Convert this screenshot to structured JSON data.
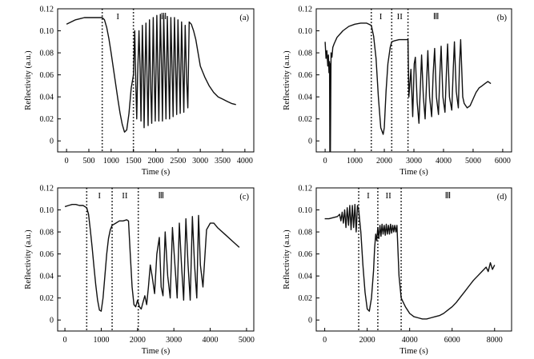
{
  "chart_data": [
    {
      "type": "line",
      "panel": "(a)",
      "ylabel": "Reflectivity (a.u.)",
      "xlabel": "Time (s)",
      "xlim": [
        -200,
        4200
      ],
      "ylim": [
        -0.01,
        0.12
      ],
      "xticks": [
        0,
        500,
        1000,
        1500,
        2000,
        2500,
        3000,
        3500,
        4000
      ],
      "yticks": [
        0,
        0.02,
        0.04,
        0.06,
        0.08,
        0.1,
        0.12
      ],
      "ytick_labels": [
        "0",
        "0.02",
        "0.04",
        "0.06",
        "0.08",
        "0.10",
        "0.12"
      ],
      "boundaries": [
        800,
        1500
      ],
      "regions": [
        {
          "label": "I",
          "x": 1150
        },
        {
          "label": "Ⅲ",
          "x": 2180
        }
      ],
      "series": [
        {
          "x": [
            0,
            100,
            200,
            300,
            400,
            500,
            600,
            700,
            800,
            850,
            900,
            950,
            1000,
            1050,
            1100,
            1150,
            1200,
            1250,
            1300,
            1350,
            1400,
            1450,
            1500,
            1530,
            1555,
            1575,
            1595,
            1625,
            1650,
            1670,
            1700,
            1725,
            1740,
            1780,
            1805,
            1830,
            1860,
            1880,
            1910,
            1945,
            1965,
            1990,
            2025,
            2050,
            2070,
            2105,
            2135,
            2150,
            2180,
            2210,
            2230,
            2260,
            2290,
            2310,
            2340,
            2370,
            2390,
            2420,
            2450,
            2470,
            2500,
            2530,
            2550,
            2580,
            2610,
            2630,
            2660,
            2690,
            2720,
            2750,
            2800,
            2850,
            2900,
            2950,
            3000,
            3100,
            3200,
            3300,
            3400,
            3500,
            3600,
            3700,
            3800
          ],
          "y": [
            0.106,
            0.108,
            0.11,
            0.111,
            0.112,
            0.112,
            0.112,
            0.112,
            0.112,
            0.11,
            0.103,
            0.093,
            0.08,
            0.066,
            0.052,
            0.038,
            0.025,
            0.015,
            0.008,
            0.01,
            0.025,
            0.048,
            0.06,
            0.1,
            0.05,
            0.02,
            0.06,
            0.1,
            0.065,
            0.018,
            0.105,
            0.06,
            0.012,
            0.107,
            0.06,
            0.014,
            0.11,
            0.06,
            0.016,
            0.112,
            0.06,
            0.018,
            0.114,
            0.06,
            0.018,
            0.115,
            0.06,
            0.018,
            0.114,
            0.06,
            0.02,
            0.113,
            0.06,
            0.02,
            0.112,
            0.06,
            0.022,
            0.112,
            0.06,
            0.024,
            0.11,
            0.06,
            0.025,
            0.108,
            0.06,
            0.026,
            0.105,
            0.06,
            0.03,
            0.108,
            0.106,
            0.1,
            0.092,
            0.08,
            0.068,
            0.058,
            0.05,
            0.044,
            0.04,
            0.038,
            0.036,
            0.034,
            0.033
          ]
        }
      ]
    },
    {
      "type": "line",
      "panel": "(b)",
      "ylabel": "Reflectivity (a.u.)",
      "xlabel": "Time (s)",
      "xlim": [
        -300,
        6300
      ],
      "ylim": [
        -0.01,
        0.12
      ],
      "xticks": [
        0,
        1000,
        2000,
        3000,
        4000,
        5000,
        6000
      ],
      "yticks": [
        0,
        0.02,
        0.04,
        0.06,
        0.08,
        0.1,
        0.12
      ],
      "ytick_labels": [
        "0",
        "0.02",
        "0.04",
        "0.06",
        "0.08",
        "0.10",
        "0.12"
      ],
      "boundaries": [
        1560,
        2250,
        2800
      ],
      "regions": [
        {
          "label": "I",
          "x": 1880
        },
        {
          "label": "II",
          "x": 2520
        },
        {
          "label": "Ⅲ",
          "x": 3750
        }
      ],
      "series": [
        {
          "x": [
            0,
            30,
            60,
            90,
            110,
            130,
            150,
            160,
            170,
            180,
            200,
            230,
            260,
            300,
            400,
            600,
            800,
            1000,
            1200,
            1400,
            1560,
            1640,
            1720,
            1800,
            1880,
            1960,
            2000,
            2060,
            2120,
            2200,
            2250,
            2350,
            2500,
            2700,
            2800,
            2830,
            2900,
            2960,
            3010,
            3050,
            3110,
            3170,
            3220,
            3260,
            3320,
            3380,
            3430,
            3470,
            3530,
            3600,
            3650,
            3700,
            3760,
            3830,
            3880,
            3920,
            3980,
            4050,
            4100,
            4140,
            4200,
            4280,
            4330,
            4370,
            4430,
            4500,
            4540,
            4580,
            4650,
            4700,
            4800,
            4900,
            5000,
            5100,
            5200,
            5300,
            5400,
            5500,
            5600
          ],
          "y": [
            0.09,
            0.075,
            0.082,
            0.068,
            0.078,
            0.062,
            0.072,
            -0.01,
            0.07,
            -0.01,
            0.08,
            0.076,
            0.085,
            0.088,
            0.094,
            0.1,
            0.104,
            0.106,
            0.107,
            0.107,
            0.105,
            0.095,
            0.075,
            0.04,
            0.012,
            0.006,
            0.012,
            0.045,
            0.07,
            0.085,
            0.09,
            0.091,
            0.092,
            0.092,
            0.092,
            0.04,
            0.065,
            0.022,
            0.07,
            0.076,
            0.035,
            0.016,
            0.05,
            0.078,
            0.04,
            0.02,
            0.055,
            0.082,
            0.04,
            0.022,
            0.06,
            0.084,
            0.04,
            0.024,
            0.062,
            0.086,
            0.04,
            0.026,
            0.064,
            0.088,
            0.04,
            0.028,
            0.066,
            0.09,
            0.045,
            0.03,
            0.068,
            0.092,
            0.04,
            0.034,
            0.03,
            0.032,
            0.038,
            0.044,
            0.048,
            0.05,
            0.052,
            0.054,
            0.052
          ]
        }
      ]
    },
    {
      "type": "line",
      "panel": "(c)",
      "ylabel": "Reflectivity (a.u.)",
      "xlabel": "Time (s)",
      "xlim": [
        -200,
        5200
      ],
      "ylim": [
        -0.01,
        0.12
      ],
      "xticks": [
        0,
        1000,
        2000,
        3000,
        4000,
        5000
      ],
      "yticks": [
        0,
        0.02,
        0.04,
        0.06,
        0.08,
        0.1,
        0.12
      ],
      "ytick_labels": [
        "0",
        "0.02",
        "0.04",
        "0.06",
        "0.08",
        "0.10",
        "0.12"
      ],
      "boundaries": [
        600,
        1300,
        2020
      ],
      "regions": [
        {
          "label": "I",
          "x": 950
        },
        {
          "label": "II",
          "x": 1650
        },
        {
          "label": "Ⅲ",
          "x": 2650
        }
      ],
      "series": [
        {
          "x": [
            0,
            100,
            200,
            300,
            400,
            500,
            600,
            650,
            700,
            750,
            800,
            850,
            900,
            950,
            1000,
            1050,
            1100,
            1150,
            1200,
            1250,
            1300,
            1400,
            1500,
            1600,
            1700,
            1750,
            1800,
            1850,
            1900,
            1950,
            2000,
            2050,
            2100,
            2150,
            2200,
            2250,
            2300,
            2350,
            2400,
            2470,
            2530,
            2600,
            2650,
            2700,
            2760,
            2830,
            2900,
            2960,
            3030,
            3090,
            3150,
            3210,
            3270,
            3330,
            3390,
            3450,
            3510,
            3570,
            3630,
            3680,
            3730,
            3800,
            3900,
            4000,
            4100,
            4200,
            4400,
            4600,
            4800
          ],
          "y": [
            0.103,
            0.104,
            0.105,
            0.105,
            0.104,
            0.104,
            0.102,
            0.096,
            0.082,
            0.066,
            0.048,
            0.032,
            0.018,
            0.009,
            0.008,
            0.02,
            0.04,
            0.06,
            0.074,
            0.082,
            0.086,
            0.088,
            0.09,
            0.09,
            0.091,
            0.09,
            0.06,
            0.03,
            0.014,
            0.012,
            0.018,
            0.012,
            0.01,
            0.016,
            0.022,
            0.014,
            0.03,
            0.05,
            0.04,
            0.024,
            0.06,
            0.075,
            0.03,
            0.022,
            0.08,
            0.04,
            0.02,
            0.084,
            0.05,
            0.02,
            0.088,
            0.05,
            0.018,
            0.092,
            0.05,
            0.018,
            0.094,
            0.05,
            0.02,
            0.095,
            0.05,
            0.03,
            0.082,
            0.088,
            0.088,
            0.084,
            0.078,
            0.072,
            0.066
          ]
        }
      ]
    },
    {
      "type": "line",
      "panel": "(d)",
      "ylabel": "Reflectivity (a.u.)",
      "xlabel": "Time (s)",
      "xlim": [
        -400,
        8800
      ],
      "ylim": [
        -0.01,
        0.12
      ],
      "xticks": [
        0,
        2000,
        4000,
        6000,
        8000
      ],
      "yticks": [
        0,
        0.02,
        0.04,
        0.06,
        0.08,
        0.1,
        0.12
      ],
      "ytick_labels": [
        "0",
        "0.02",
        "0.04",
        "0.06",
        "0.08",
        "0.10",
        "0.12"
      ],
      "boundaries": [
        1600,
        2500,
        3600
      ],
      "regions": [
        {
          "label": "I",
          "x": 2050
        },
        {
          "label": "II",
          "x": 3000
        },
        {
          "label": "Ⅲ",
          "x": 5800
        }
      ],
      "series": [
        {
          "x": [
            0,
            200,
            400,
            600,
            700,
            760,
            820,
            880,
            940,
            1000,
            1060,
            1120,
            1180,
            1240,
            1300,
            1360,
            1420,
            1480,
            1540,
            1600,
            1700,
            1800,
            1900,
            2000,
            2100,
            2200,
            2300,
            2350,
            2400,
            2450,
            2500,
            2550,
            2600,
            2650,
            2700,
            2750,
            2800,
            2850,
            2900,
            2950,
            3000,
            3050,
            3100,
            3150,
            3200,
            3250,
            3300,
            3350,
            3400,
            3500,
            3600,
            3700,
            3800,
            4000,
            4200,
            4400,
            4600,
            4800,
            5000,
            5200,
            5400,
            5600,
            5800,
            6000,
            6200,
            6400,
            6600,
            6800,
            7000,
            7200,
            7400,
            7600,
            7700,
            7800,
            7900,
            8000
          ],
          "y": [
            0.092,
            0.092,
            0.093,
            0.094,
            0.096,
            0.09,
            0.098,
            0.088,
            0.1,
            0.084,
            0.102,
            0.086,
            0.104,
            0.082,
            0.104,
            0.084,
            0.105,
            0.08,
            0.104,
            0.1,
            0.08,
            0.05,
            0.025,
            0.01,
            0.008,
            0.02,
            0.045,
            0.065,
            0.078,
            0.072,
            0.084,
            0.074,
            0.086,
            0.076,
            0.087,
            0.078,
            0.086,
            0.077,
            0.087,
            0.078,
            0.086,
            0.078,
            0.087,
            0.079,
            0.086,
            0.08,
            0.086,
            0.08,
            0.086,
            0.04,
            0.02,
            0.016,
            0.012,
            0.006,
            0.003,
            0.002,
            0.001,
            0.001,
            0.002,
            0.003,
            0.004,
            0.006,
            0.009,
            0.012,
            0.016,
            0.021,
            0.026,
            0.031,
            0.036,
            0.04,
            0.044,
            0.048,
            0.044,
            0.052,
            0.046,
            0.05
          ]
        }
      ]
    }
  ]
}
